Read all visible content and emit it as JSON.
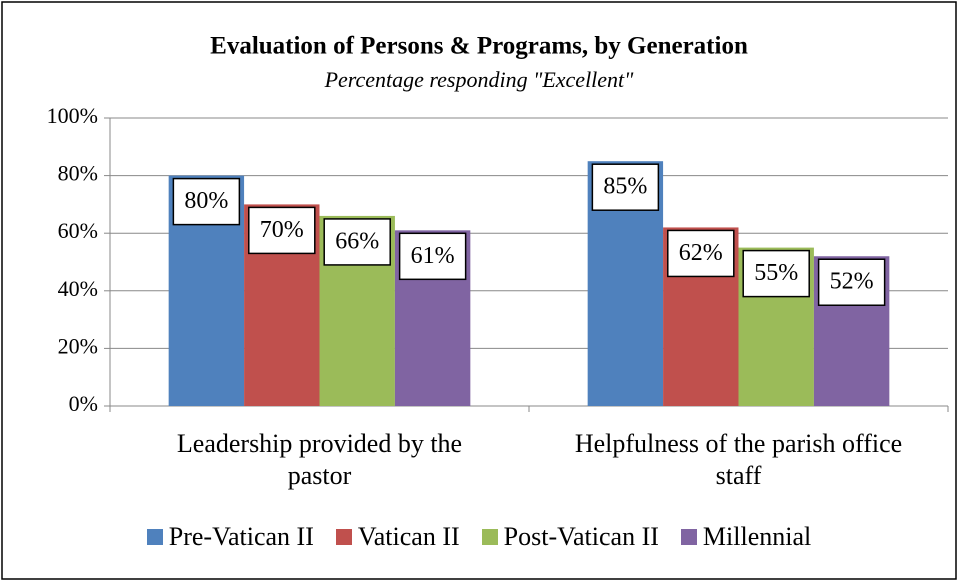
{
  "chart_data": {
    "type": "bar",
    "title": "Evaluation of Persons & Programs, by Generation",
    "subtitle": "Percentage responding \"Excellent\"",
    "categories": [
      "Leadership provided by the pastor",
      "Helpfulness of the parish office staff"
    ],
    "series": [
      {
        "name": "Pre-Vatican II",
        "color": "#4f81bd",
        "values": [
          80,
          85
        ],
        "value_labels": [
          "80%",
          "85%"
        ]
      },
      {
        "name": "Vatican II",
        "color": "#c0504d",
        "values": [
          70,
          62
        ],
        "value_labels": [
          "70%",
          "62%"
        ]
      },
      {
        "name": "Post-Vatican II",
        "color": "#9bbb59",
        "values": [
          66,
          55
        ],
        "value_labels": [
          "66%",
          "55%"
        ]
      },
      {
        "name": "Millennial",
        "color": "#8064a2",
        "values": [
          61,
          52
        ],
        "value_labels": [
          "61%",
          "52%"
        ]
      }
    ],
    "ylim": [
      0,
      100
    ],
    "yticks": [
      {
        "value": 0,
        "label": "0%"
      },
      {
        "value": 20,
        "label": "20%"
      },
      {
        "value": 40,
        "label": "40%"
      },
      {
        "value": 60,
        "label": "60%"
      },
      {
        "value": 80,
        "label": "80%"
      },
      {
        "value": 100,
        "label": "100%"
      }
    ],
    "grid": true,
    "legend": "bottom"
  }
}
